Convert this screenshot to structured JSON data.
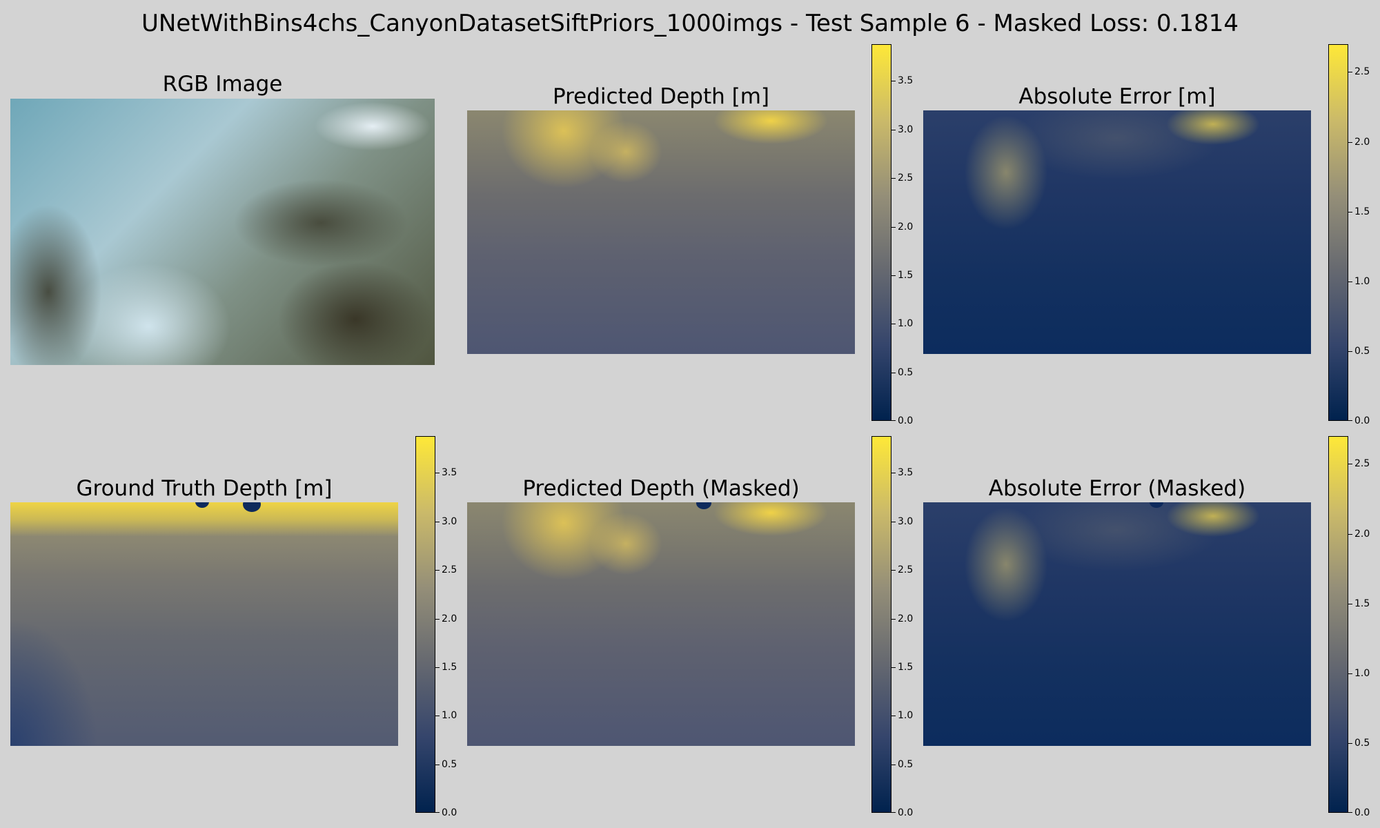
{
  "figure": {
    "suptitle": "UNetWithBins4chs_CanyonDatasetSiftPriors_1000imgs - Test Sample 6 - Masked Loss: 0.1814"
  },
  "panels": {
    "rgb": {
      "title": "RGB Image"
    },
    "pred": {
      "title": "Predicted Depth [m]"
    },
    "err": {
      "title": "Absolute Error [m]"
    },
    "gt": {
      "title": "Ground Truth Depth [m]"
    },
    "pred_masked": {
      "title": "Predicted Depth (Masked)"
    },
    "err_masked": {
      "title": "Absolute Error (Masked)"
    }
  },
  "colormap": {
    "name": "cividis",
    "stops": [
      "#00224e",
      "#35456c",
      "#666970",
      "#958f78",
      "#cbba69",
      "#fee838"
    ]
  },
  "chart_data": [
    {
      "type": "heatmap",
      "title": "RGB Image",
      "axis": "off"
    },
    {
      "type": "heatmap",
      "title": "Predicted Depth [m]",
      "colorbar": {
        "ticks": [
          0.0,
          0.5,
          1.0,
          1.5,
          2.0,
          2.5,
          3.0,
          3.5
        ],
        "tick_labels": [
          "0.0",
          "0.5",
          "1.0",
          "1.5",
          "2.0",
          "2.5",
          "3.0",
          "3.5"
        ],
        "vmin": 0.0,
        "vmax": 3.88
      },
      "axis": "off"
    },
    {
      "type": "heatmap",
      "title": "Absolute Error [m]",
      "colorbar": {
        "ticks": [
          0.0,
          0.5,
          1.0,
          1.5,
          2.0,
          2.5
        ],
        "tick_labels": [
          "0.0",
          "0.5",
          "1.0",
          "1.5",
          "2.0",
          "2.5"
        ],
        "vmin": 0.0,
        "vmax": 2.7
      },
      "axis": "off"
    },
    {
      "type": "heatmap",
      "title": "Ground Truth Depth [m]",
      "colorbar": {
        "ticks": [
          0.0,
          0.5,
          1.0,
          1.5,
          2.0,
          2.5,
          3.0,
          3.5
        ],
        "tick_labels": [
          "0.0",
          "0.5",
          "1.0",
          "1.5",
          "2.0",
          "2.5",
          "3.0",
          "3.5"
        ],
        "vmin": 0.0,
        "vmax": 3.88
      },
      "axis": "off"
    },
    {
      "type": "heatmap",
      "title": "Predicted Depth (Masked)",
      "colorbar": {
        "ticks": [
          0.0,
          0.5,
          1.0,
          1.5,
          2.0,
          2.5,
          3.0,
          3.5
        ],
        "tick_labels": [
          "0.0",
          "0.5",
          "1.0",
          "1.5",
          "2.0",
          "2.5",
          "3.0",
          "3.5"
        ],
        "vmin": 0.0,
        "vmax": 3.88
      },
      "axis": "off"
    },
    {
      "type": "heatmap",
      "title": "Absolute Error (Masked)",
      "colorbar": {
        "ticks": [
          0.0,
          0.5,
          1.0,
          1.5,
          2.0,
          2.5
        ],
        "tick_labels": [
          "0.0",
          "0.5",
          "1.0",
          "1.5",
          "2.0",
          "2.5"
        ],
        "vmin": 0.0,
        "vmax": 2.7
      },
      "axis": "off"
    }
  ]
}
